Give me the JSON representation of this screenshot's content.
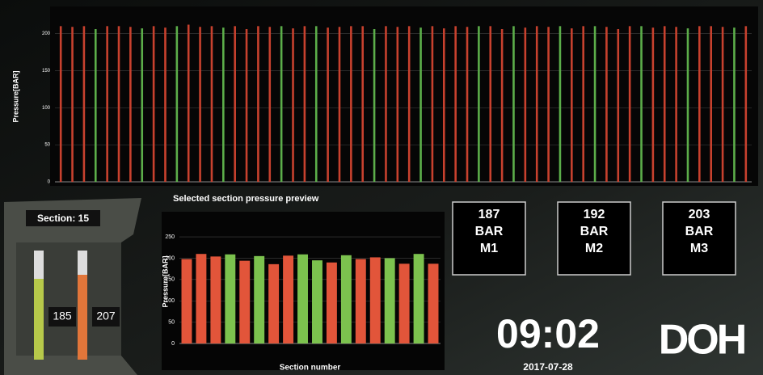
{
  "chart_data": [
    {
      "type": "bar",
      "y_label": "Pressure[BAR]",
      "values": [
        210,
        209,
        210,
        206,
        210,
        210,
        209,
        207,
        210,
        208,
        210,
        212,
        209,
        210,
        208,
        210,
        206,
        210,
        209,
        210,
        207,
        210,
        210,
        208,
        209,
        210,
        210,
        206,
        210,
        209,
        210,
        208,
        210,
        207,
        210,
        209,
        210,
        210,
        206,
        210,
        208,
        210,
        209,
        210,
        207,
        210,
        210,
        209,
        206,
        210,
        210,
        208,
        210,
        209,
        207,
        210,
        210,
        209,
        208,
        210
      ],
      "colors": [
        "#c8412e",
        "#c8412e",
        "#c8412e",
        "#5cae4a",
        "#c8412e",
        "#c8412e",
        "#c8412e",
        "#5cae4a",
        "#c8412e",
        "#c8412e",
        "#5cae4a",
        "#c8412e",
        "#c8412e",
        "#c8412e",
        "#5cae4a",
        "#c8412e",
        "#c8412e",
        "#c8412e",
        "#c8412e",
        "#5cae4a",
        "#c8412e",
        "#c8412e",
        "#5cae4a",
        "#c8412e",
        "#c8412e",
        "#c8412e",
        "#c8412e",
        "#5cae4a",
        "#c8412e",
        "#c8412e",
        "#c8412e",
        "#5cae4a",
        "#c8412e",
        "#c8412e",
        "#c8412e",
        "#c8412e",
        "#5cae4a",
        "#c8412e",
        "#c8412e",
        "#5cae4a",
        "#c8412e",
        "#c8412e",
        "#c8412e",
        "#5cae4a",
        "#c8412e",
        "#c8412e",
        "#5cae4a",
        "#c8412e",
        "#c8412e",
        "#c8412e",
        "#5cae4a",
        "#c8412e",
        "#c8412e",
        "#c8412e",
        "#5cae4a",
        "#c8412e",
        "#c8412e",
        "#c8412e",
        "#5cae4a",
        "#c8412e"
      ],
      "ylim": [
        0,
        230
      ],
      "yticks": [
        0,
        50,
        100,
        150,
        200
      ],
      "grid": true
    },
    {
      "type": "bar",
      "title": "Selected section pressure preview",
      "y_label": "Pressure[BAR]",
      "x_label": "Section number",
      "values": [
        198,
        210,
        204,
        209,
        194,
        205,
        186,
        206,
        209,
        195,
        190,
        207,
        198,
        202,
        200,
        187,
        210,
        187
      ],
      "colors": [
        "#e2553a",
        "#e2553a",
        "#e2553a",
        "#7cc24e",
        "#e2553a",
        "#7cc24e",
        "#e2553a",
        "#e2553a",
        "#7cc24e",
        "#7cc24e",
        "#e2553a",
        "#7cc24e",
        "#e2553a",
        "#e2553a",
        "#7cc24e",
        "#e2553a",
        "#7cc24e",
        "#e2553a"
      ],
      "ylim": [
        0,
        290
      ],
      "yticks": [
        0,
        50,
        100,
        150,
        200,
        250
      ],
      "grid": true
    }
  ],
  "section": "Section: 15",
  "gauges": [
    "185",
    "207"
  ],
  "boxes": [
    {
      "value": "187",
      "unit": "BAR",
      "label": "M1"
    },
    {
      "value": "192",
      "unit": "BAR",
      "label": "M2"
    },
    {
      "value": "203",
      "unit": "BAR",
      "label": "M3"
    }
  ],
  "clock": {
    "time": "09:02",
    "date": "2017-07-28"
  },
  "logo": "DOH"
}
